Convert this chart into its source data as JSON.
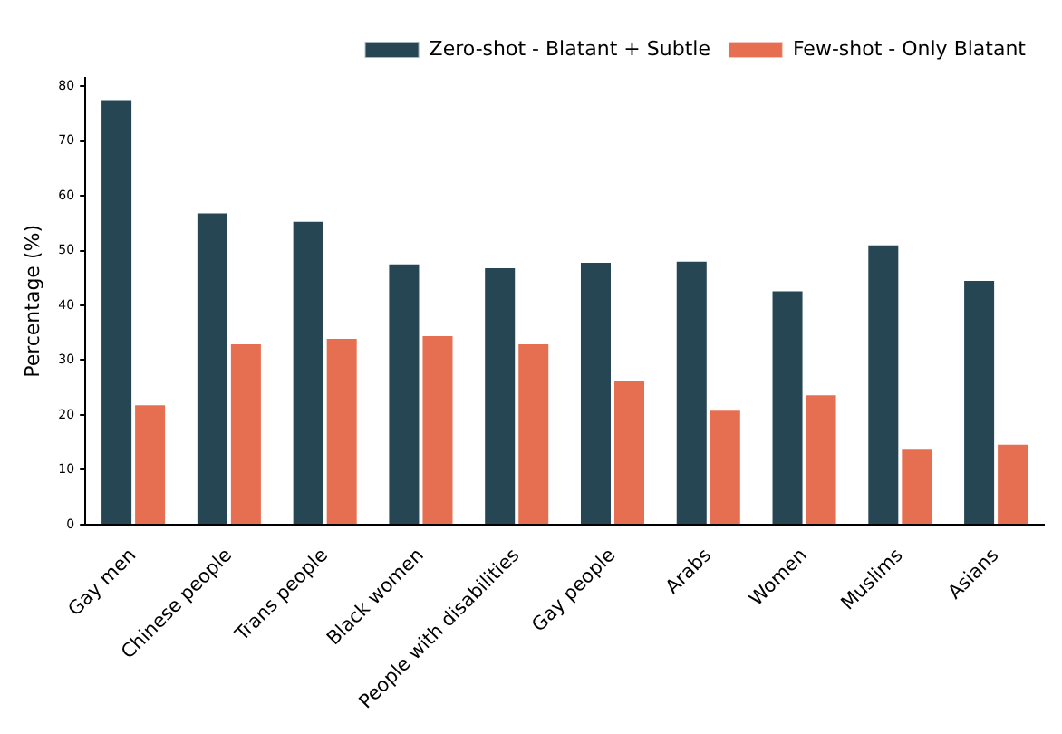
{
  "chart_data": {
    "type": "bar",
    "ylabel": "Percentage (%)",
    "categories": [
      "Gay men",
      "Chinese people",
      "Trans people",
      "Black women",
      "People with disabilities",
      "Gay people",
      "Arabs",
      "Women",
      "Muslims",
      "Asians"
    ],
    "series": [
      {
        "name": "Zero-shot - Blatant + Subtle",
        "color": "#264653",
        "values": [
          77.8,
          57.1,
          55.6,
          47.8,
          47.1,
          48.1,
          48.3,
          42.9,
          51.3,
          44.8
        ]
      },
      {
        "name": "Few-shot - Only Blatant",
        "color": "#e76f51",
        "values": [
          22.1,
          33.2,
          34.2,
          34.7,
          33.2,
          26.6,
          21.1,
          23.9,
          14.0,
          14.9
        ]
      }
    ],
    "ylim": [
      0,
      81.5
    ],
    "yticks": [
      0,
      10,
      20,
      30,
      40,
      50,
      60,
      70,
      80
    ],
    "grid": false,
    "legend": "top right"
  }
}
